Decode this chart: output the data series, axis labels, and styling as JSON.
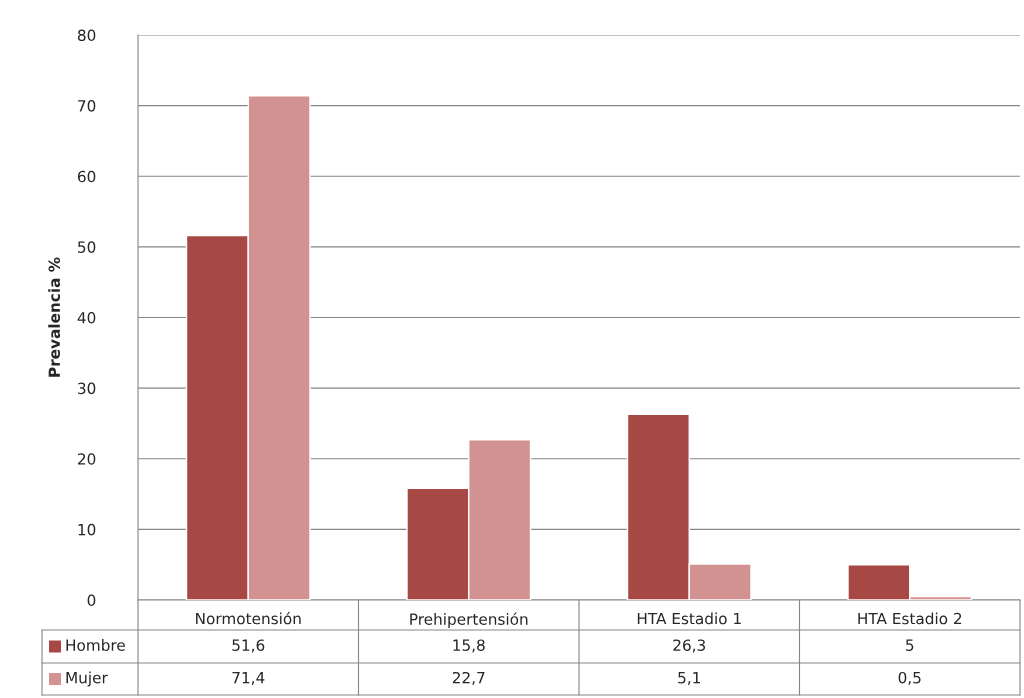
{
  "chart_data": {
    "type": "bar",
    "ylabel": "Prevalencia %",
    "categories": [
      "Normotensión",
      "Prehipertensión",
      "HTA Estadio 1",
      "HTA Estadio 2"
    ],
    "series": [
      {
        "name": "Hombre",
        "color": "#a84845",
        "values": [
          51.6,
          15.8,
          26.3,
          5
        ],
        "value_labels": [
          "51,6",
          "15,8",
          "26,3",
          "5"
        ]
      },
      {
        "name": "Mujer",
        "color": "#d19291",
        "values": [
          71.4,
          22.7,
          5.1,
          0.5
        ],
        "value_labels": [
          "71,4",
          "22,7",
          "5,1",
          "0,5"
        ]
      }
    ],
    "ylim": [
      0,
      80
    ],
    "yticks": [
      0,
      10,
      20,
      30,
      40,
      50,
      60,
      70,
      80
    ],
    "grid": "y",
    "legend": "bottom"
  }
}
